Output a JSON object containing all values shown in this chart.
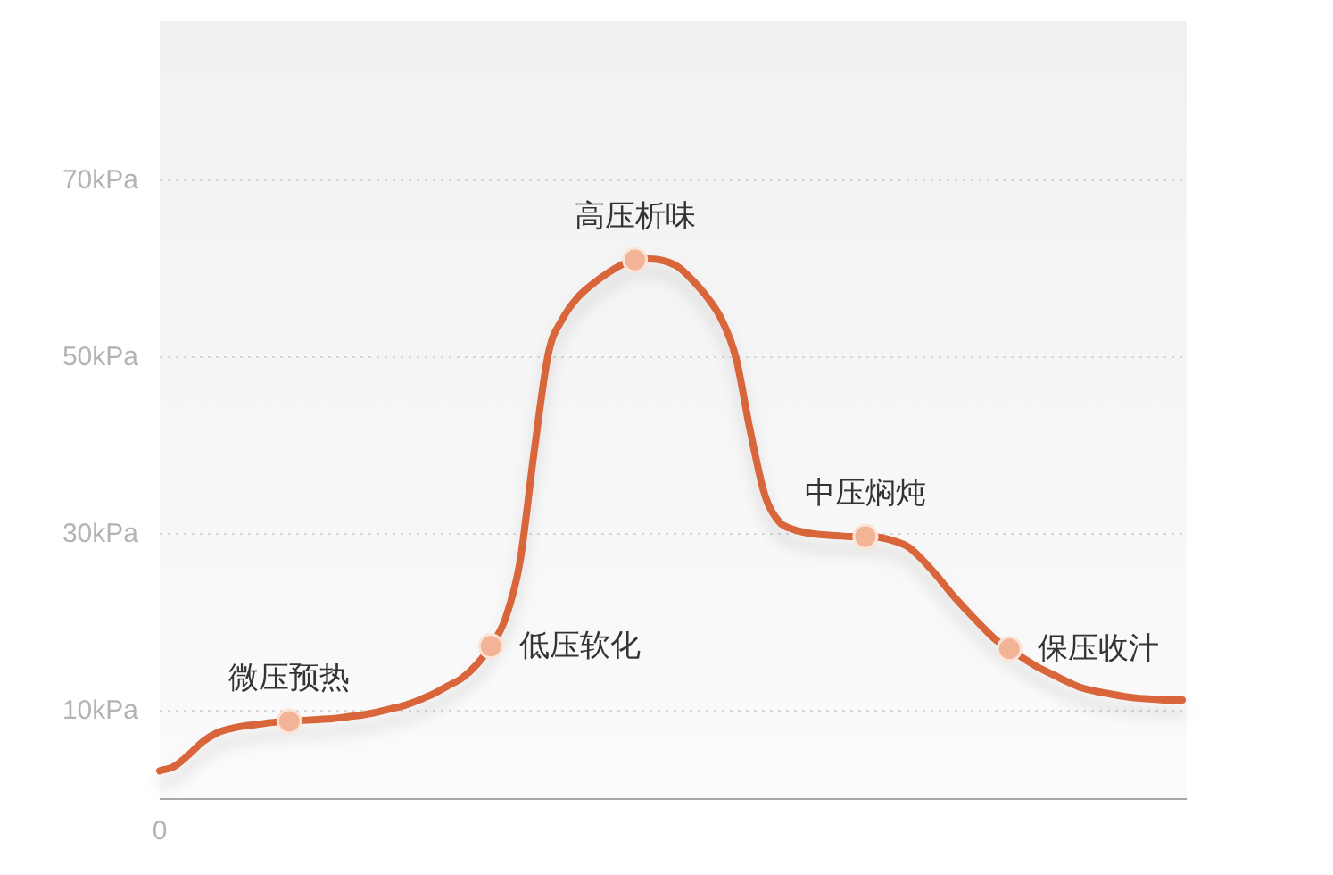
{
  "chart_data": {
    "type": "line",
    "categories": [
      "0",
      null,
      null,
      null,
      null,
      null,
      null,
      null,
      null,
      null,
      null,
      null,
      null,
      null,
      null,
      null,
      null,
      null,
      null,
      null,
      null,
      null,
      null,
      null,
      null,
      null,
      null,
      null,
      null,
      null,
      null,
      null,
      null,
      null,
      null,
      null,
      null,
      null,
      null,
      null,
      null,
      null,
      null,
      null,
      null,
      null,
      null,
      null,
      null,
      null,
      null,
      null,
      null,
      null,
      null,
      null,
      null,
      null,
      null,
      null,
      null,
      null,
      null,
      null,
      null,
      null,
      null,
      null,
      null,
      null,
      null,
      null
    ],
    "ylim": [
      0,
      88
    ],
    "yticks": [
      {
        "value": 10,
        "label": "10kPa"
      },
      {
        "value": 30,
        "label": "30kPa"
      },
      {
        "value": 50,
        "label": "50kPa"
      },
      {
        "value": 70,
        "label": "70kPa"
      }
    ],
    "grid": "y",
    "series": [
      {
        "type": "line",
        "color": "#d9653b",
        "values": [
          3.2,
          3.7,
          5.0,
          6.5,
          7.5,
          8.0,
          8.3,
          8.5,
          8.7,
          8.8,
          8.9,
          9.0,
          9.1,
          9.3,
          9.5,
          9.8,
          10.2,
          10.6,
          11.2,
          11.9,
          12.8,
          13.7,
          15.2,
          17.3,
          20.4,
          26.7,
          39.3,
          50.5,
          54.4,
          56.7,
          58.2,
          59.4,
          60.4,
          61.0,
          61.1,
          60.9,
          60.2,
          58.7,
          56.8,
          54.3,
          50.0,
          41.7,
          34.5,
          31.4,
          30.5,
          30.1,
          29.9,
          29.8,
          29.7,
          29.7,
          29.6,
          29.2,
          28.5,
          27.0,
          25.2,
          23.2,
          21.4,
          19.7,
          18.1,
          17.0,
          15.9,
          14.9,
          14.1,
          13.3,
          12.6,
          12.2,
          11.9,
          11.6,
          11.4,
          11.3,
          11.2,
          11.2
        ]
      },
      {
        "type": "scatter",
        "color": "#f3b396",
        "marker": "circle",
        "values": [
          null,
          null,
          null,
          null,
          null,
          null,
          null,
          null,
          null,
          8.8,
          null,
          null,
          null,
          null,
          null,
          null,
          null,
          null,
          null,
          null,
          null,
          null,
          null,
          17.3,
          null,
          null,
          null,
          null,
          null,
          null,
          null,
          null,
          null,
          61.0,
          null,
          null,
          null,
          null,
          null,
          null,
          null,
          null,
          null,
          null,
          null,
          null,
          null,
          null,
          null,
          29.7,
          null,
          null,
          null,
          null,
          null,
          null,
          null,
          null,
          null,
          17.0,
          null,
          null,
          null,
          null,
          null,
          null,
          null,
          null,
          null,
          null,
          null,
          null
        ],
        "value_labels": [
          null,
          null,
          null,
          null,
          null,
          null,
          null,
          null,
          null,
          "微压预热",
          null,
          null,
          null,
          null,
          null,
          null,
          null,
          null,
          null,
          null,
          null,
          null,
          null,
          "低压软化",
          null,
          null,
          null,
          null,
          null,
          null,
          null,
          null,
          null,
          "高压析味",
          null,
          null,
          null,
          null,
          null,
          null,
          null,
          null,
          null,
          null,
          null,
          null,
          null,
          null,
          null,
          "中压焖炖",
          null,
          null,
          null,
          null,
          null,
          null,
          null,
          null,
          null,
          "保压收汁",
          null,
          null,
          null,
          null,
          null,
          null,
          null,
          null,
          null,
          null,
          null,
          null
        ]
      }
    ]
  }
}
